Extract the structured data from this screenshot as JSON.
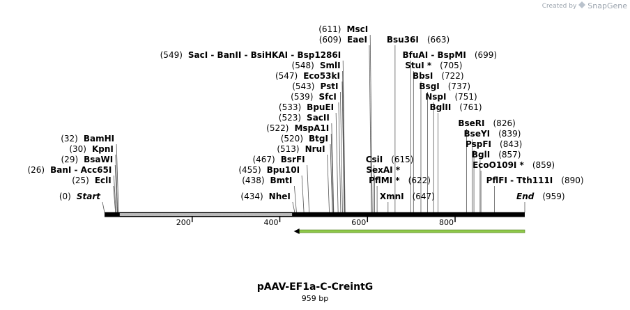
{
  "credit": {
    "prefix": "Created by",
    "brand": "SnapGene"
  },
  "plasmid": {
    "name": "pAAV-EF1a-C-CreintG",
    "length_label": "959 bp"
  },
  "ruler": {
    "start": 0,
    "end": 959,
    "ticks": [
      "200",
      "400",
      "600",
      "800"
    ]
  },
  "feature": {
    "start": 432,
    "end": 959,
    "direction": "forward",
    "color": "#8fc94a"
  },
  "labels": [
    {
      "pos": 0,
      "text": "(0)",
      "name": "Start",
      "italic": true,
      "align": "right"
    },
    {
      "pos": 25,
      "text": "(25)",
      "name": "EclI",
      "align": "right"
    },
    {
      "pos": 26,
      "text": "(26)",
      "name": "BanI  -  Acc65I",
      "align": "right"
    },
    {
      "pos": 29,
      "text": "(29)",
      "name": "BsaWI",
      "align": "right"
    },
    {
      "pos": 30,
      "text": "(30)",
      "name": "KpnI",
      "align": "right"
    },
    {
      "pos": 32,
      "text": "(32)",
      "name": "BamHI",
      "align": "right"
    },
    {
      "pos": 434,
      "text": "(434)",
      "name": "NheI",
      "align": "right"
    },
    {
      "pos": 438,
      "text": "(438)",
      "name": "BmtI",
      "align": "right"
    },
    {
      "pos": 455,
      "text": "(455)",
      "name": "Bpu10I",
      "align": "right"
    },
    {
      "pos": 467,
      "text": "(467)",
      "name": "BsrFI",
      "align": "right"
    },
    {
      "pos": 513,
      "text": "(513)",
      "name": "NruI",
      "align": "right"
    },
    {
      "pos": 520,
      "text": "(520)",
      "name": "BtgI",
      "align": "right"
    },
    {
      "pos": 522,
      "text": "(522)",
      "name": "MspA1I",
      "align": "right"
    },
    {
      "pos": 523,
      "text": "(523)",
      "name": "SacII",
      "align": "right"
    },
    {
      "pos": 533,
      "text": "(533)",
      "name": "BpuEI",
      "align": "right"
    },
    {
      "pos": 539,
      "text": "(539)",
      "name": "SfcI",
      "align": "right"
    },
    {
      "pos": 543,
      "text": "(543)",
      "name": "PstI",
      "align": "right"
    },
    {
      "pos": 547,
      "text": "(547)",
      "name": "Eco53kI",
      "align": "right"
    },
    {
      "pos": 548,
      "text": "(548)",
      "name": "SmlI",
      "align": "right"
    },
    {
      "pos": 549,
      "text": "(549)",
      "name": "SacI  -  BanII  -  BsiHKAI  -  Bsp1286I",
      "align": "right"
    },
    {
      "pos": 609,
      "text": "(609)",
      "name": "EaeI",
      "align": "right"
    },
    {
      "pos": 611,
      "text": "(611)",
      "name": "MscI",
      "align": "right"
    },
    {
      "pos": 615,
      "text": "(615)",
      "name": "CsiI",
      "align": "left"
    },
    {
      "pos": 616,
      "text": "",
      "name": "SexAI *",
      "align": "left"
    },
    {
      "pos": 622,
      "text": "(622)",
      "name": "PflMI *",
      "align": "left"
    },
    {
      "pos": 647,
      "text": "(647)",
      "name": "XmnI",
      "align": "left"
    },
    {
      "pos": 663,
      "text": "(663)",
      "name": "Bsu36I",
      "align": "left"
    },
    {
      "pos": 699,
      "text": "(699)",
      "name": "BfuAI  -  BspMI",
      "align": "left"
    },
    {
      "pos": 705,
      "text": "(705)",
      "name": "StuI *",
      "align": "left"
    },
    {
      "pos": 722,
      "text": "(722)",
      "name": "BbsI",
      "align": "left"
    },
    {
      "pos": 737,
      "text": "(737)",
      "name": "BsgI",
      "align": "left"
    },
    {
      "pos": 751,
      "text": "(751)",
      "name": "NspI",
      "align": "left"
    },
    {
      "pos": 761,
      "text": "(761)",
      "name": "BglII",
      "align": "left"
    },
    {
      "pos": 826,
      "text": "(826)",
      "name": "BseRI",
      "align": "left"
    },
    {
      "pos": 839,
      "text": "(839)",
      "name": "BseYI",
      "align": "left"
    },
    {
      "pos": 843,
      "text": "(843)",
      "name": "PspFI",
      "align": "left"
    },
    {
      "pos": 857,
      "text": "(857)",
      "name": "BglI",
      "align": "left"
    },
    {
      "pos": 859,
      "text": "(859)",
      "name": "EcoO109I *",
      "align": "left"
    },
    {
      "pos": 890,
      "text": "(890)",
      "name": "PflFI  -  Tth111I",
      "align": "left"
    },
    {
      "pos": 959,
      "text": "(959)",
      "name": "End",
      "italic": true,
      "align": "left"
    }
  ]
}
